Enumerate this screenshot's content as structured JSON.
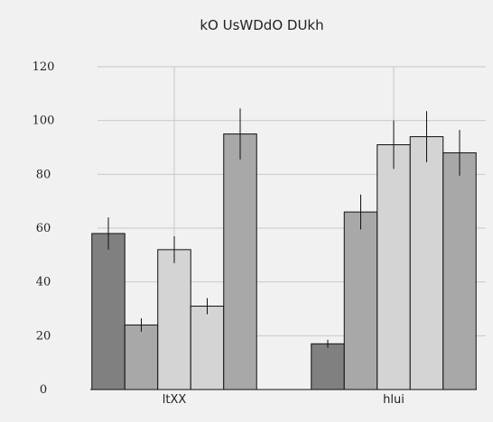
{
  "chart_data": {
    "type": "bar",
    "title": "kO UsWDdO DUkh",
    "xlabel": "",
    "ylabel": "",
    "categories": [
      "ltXX",
      "hlui"
    ],
    "ylim": [
      0,
      120
    ],
    "yticks": [
      0,
      20,
      40,
      60,
      80,
      100,
      120
    ],
    "grid": true,
    "legend": "none",
    "series": [
      {
        "color": "#808080",
        "values": [
          58,
          17
        ],
        "errors": [
          6,
          1.5
        ]
      },
      {
        "color": "#a8a8a8",
        "values": [
          24,
          66
        ],
        "errors": [
          2.5,
          6.5
        ]
      },
      {
        "color": "#d4d4d4",
        "values": [
          52,
          91
        ],
        "errors": [
          5,
          9
        ]
      },
      {
        "color": "#d4d4d4",
        "values": [
          31,
          94
        ],
        "errors": [
          3,
          9.5
        ]
      },
      {
        "color": "#a8a8a8",
        "values": [
          95,
          88
        ],
        "errors": [
          9.5,
          8.5
        ]
      }
    ]
  }
}
